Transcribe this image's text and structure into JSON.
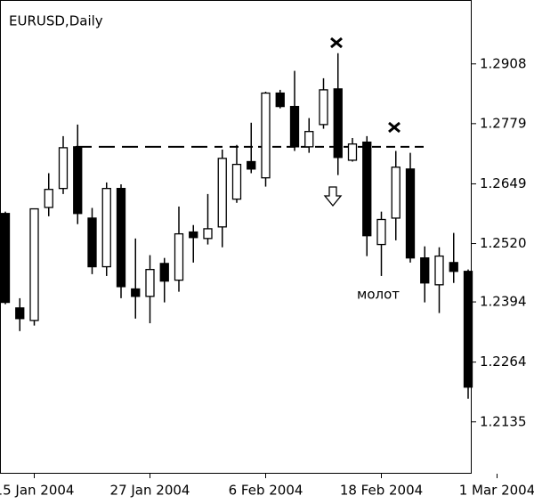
{
  "chart_data": {
    "type": "candlestick",
    "title": "EURUSD,Daily",
    "categories": [
      null,
      null,
      "15 Jan 2004",
      null,
      null,
      null,
      null,
      null,
      null,
      null,
      "27 Jan 2004",
      null,
      null,
      null,
      null,
      null,
      null,
      null,
      "6 Feb 2004",
      null,
      null,
      null,
      null,
      null,
      null,
      null,
      "18 Feb 2004",
      null,
      null,
      null,
      null,
      null,
      null,
      null,
      "1 Mar 2004"
    ],
    "open": [
      1.2585,
      1.2381,
      1.2354,
      1.2598,
      1.2639,
      1.2729,
      1.2575,
      1.247,
      1.2639,
      1.2422,
      1.2406,
      1.2477,
      1.2441,
      1.2545,
      1.2531,
      1.2556,
      1.2616,
      1.2697,
      1.2662,
      1.2845,
      1.2816,
      1.2729,
      1.2777,
      1.2854,
      1.27,
      1.2739,
      1.2518,
      1.2575,
      1.2681,
      1.2489,
      1.2431,
      1.2479,
      1.246,
      null,
      null
    ],
    "high": [
      1.2589,
      1.2402,
      1.2595,
      1.2672,
      1.2752,
      1.2777,
      1.2597,
      1.2652,
      1.2648,
      1.2531,
      1.2495,
      1.2489,
      1.26,
      1.256,
      1.2627,
      1.2723,
      1.2733,
      1.2781,
      1.2848,
      1.2852,
      1.2893,
      1.2791,
      1.2877,
      1.2931,
      1.2748,
      1.2752,
      1.2589,
      1.272,
      1.2716,
      1.2514,
      1.2512,
      1.2543,
      1.2464,
      null,
      null
    ],
    "low": [
      1.2389,
      1.2331,
      1.2343,
      1.2579,
      1.2627,
      1.2562,
      1.2454,
      1.245,
      1.2402,
      1.2358,
      1.2348,
      1.2393,
      1.2416,
      1.2479,
      1.2518,
      1.2512,
      1.2608,
      1.2672,
      1.2643,
      1.2812,
      1.272,
      1.2716,
      1.2768,
      1.2668,
      1.2697,
      1.2493,
      1.245,
      1.2527,
      1.2479,
      1.2393,
      1.237,
      1.2435,
      1.2185,
      null,
      null
    ],
    "close": [
      1.2393,
      1.2358,
      1.2595,
      1.2637,
      1.2727,
      1.2585,
      1.247,
      1.2639,
      1.2427,
      1.2406,
      1.2464,
      1.2439,
      1.2541,
      1.2533,
      1.2552,
      1.2704,
      1.2691,
      1.2681,
      1.2845,
      1.2816,
      1.2729,
      1.2762,
      1.2852,
      1.2706,
      1.2735,
      1.2537,
      1.2572,
      1.2685,
      1.2489,
      1.2435,
      1.2493,
      1.246,
      1.221,
      null,
      null
    ],
    "up_color": "#ffffff",
    "down_color": "#000000",
    "level": 1.2729,
    "annotation": "молот",
    "ylim": [
      1.2023,
      1.3046
    ],
    "yticks": [
      1.2908,
      1.2779,
      1.2649,
      {
        "value": 1.252,
        "label": "1.2520"
      },
      1.2394,
      1.2264,
      1.2135
    ]
  }
}
